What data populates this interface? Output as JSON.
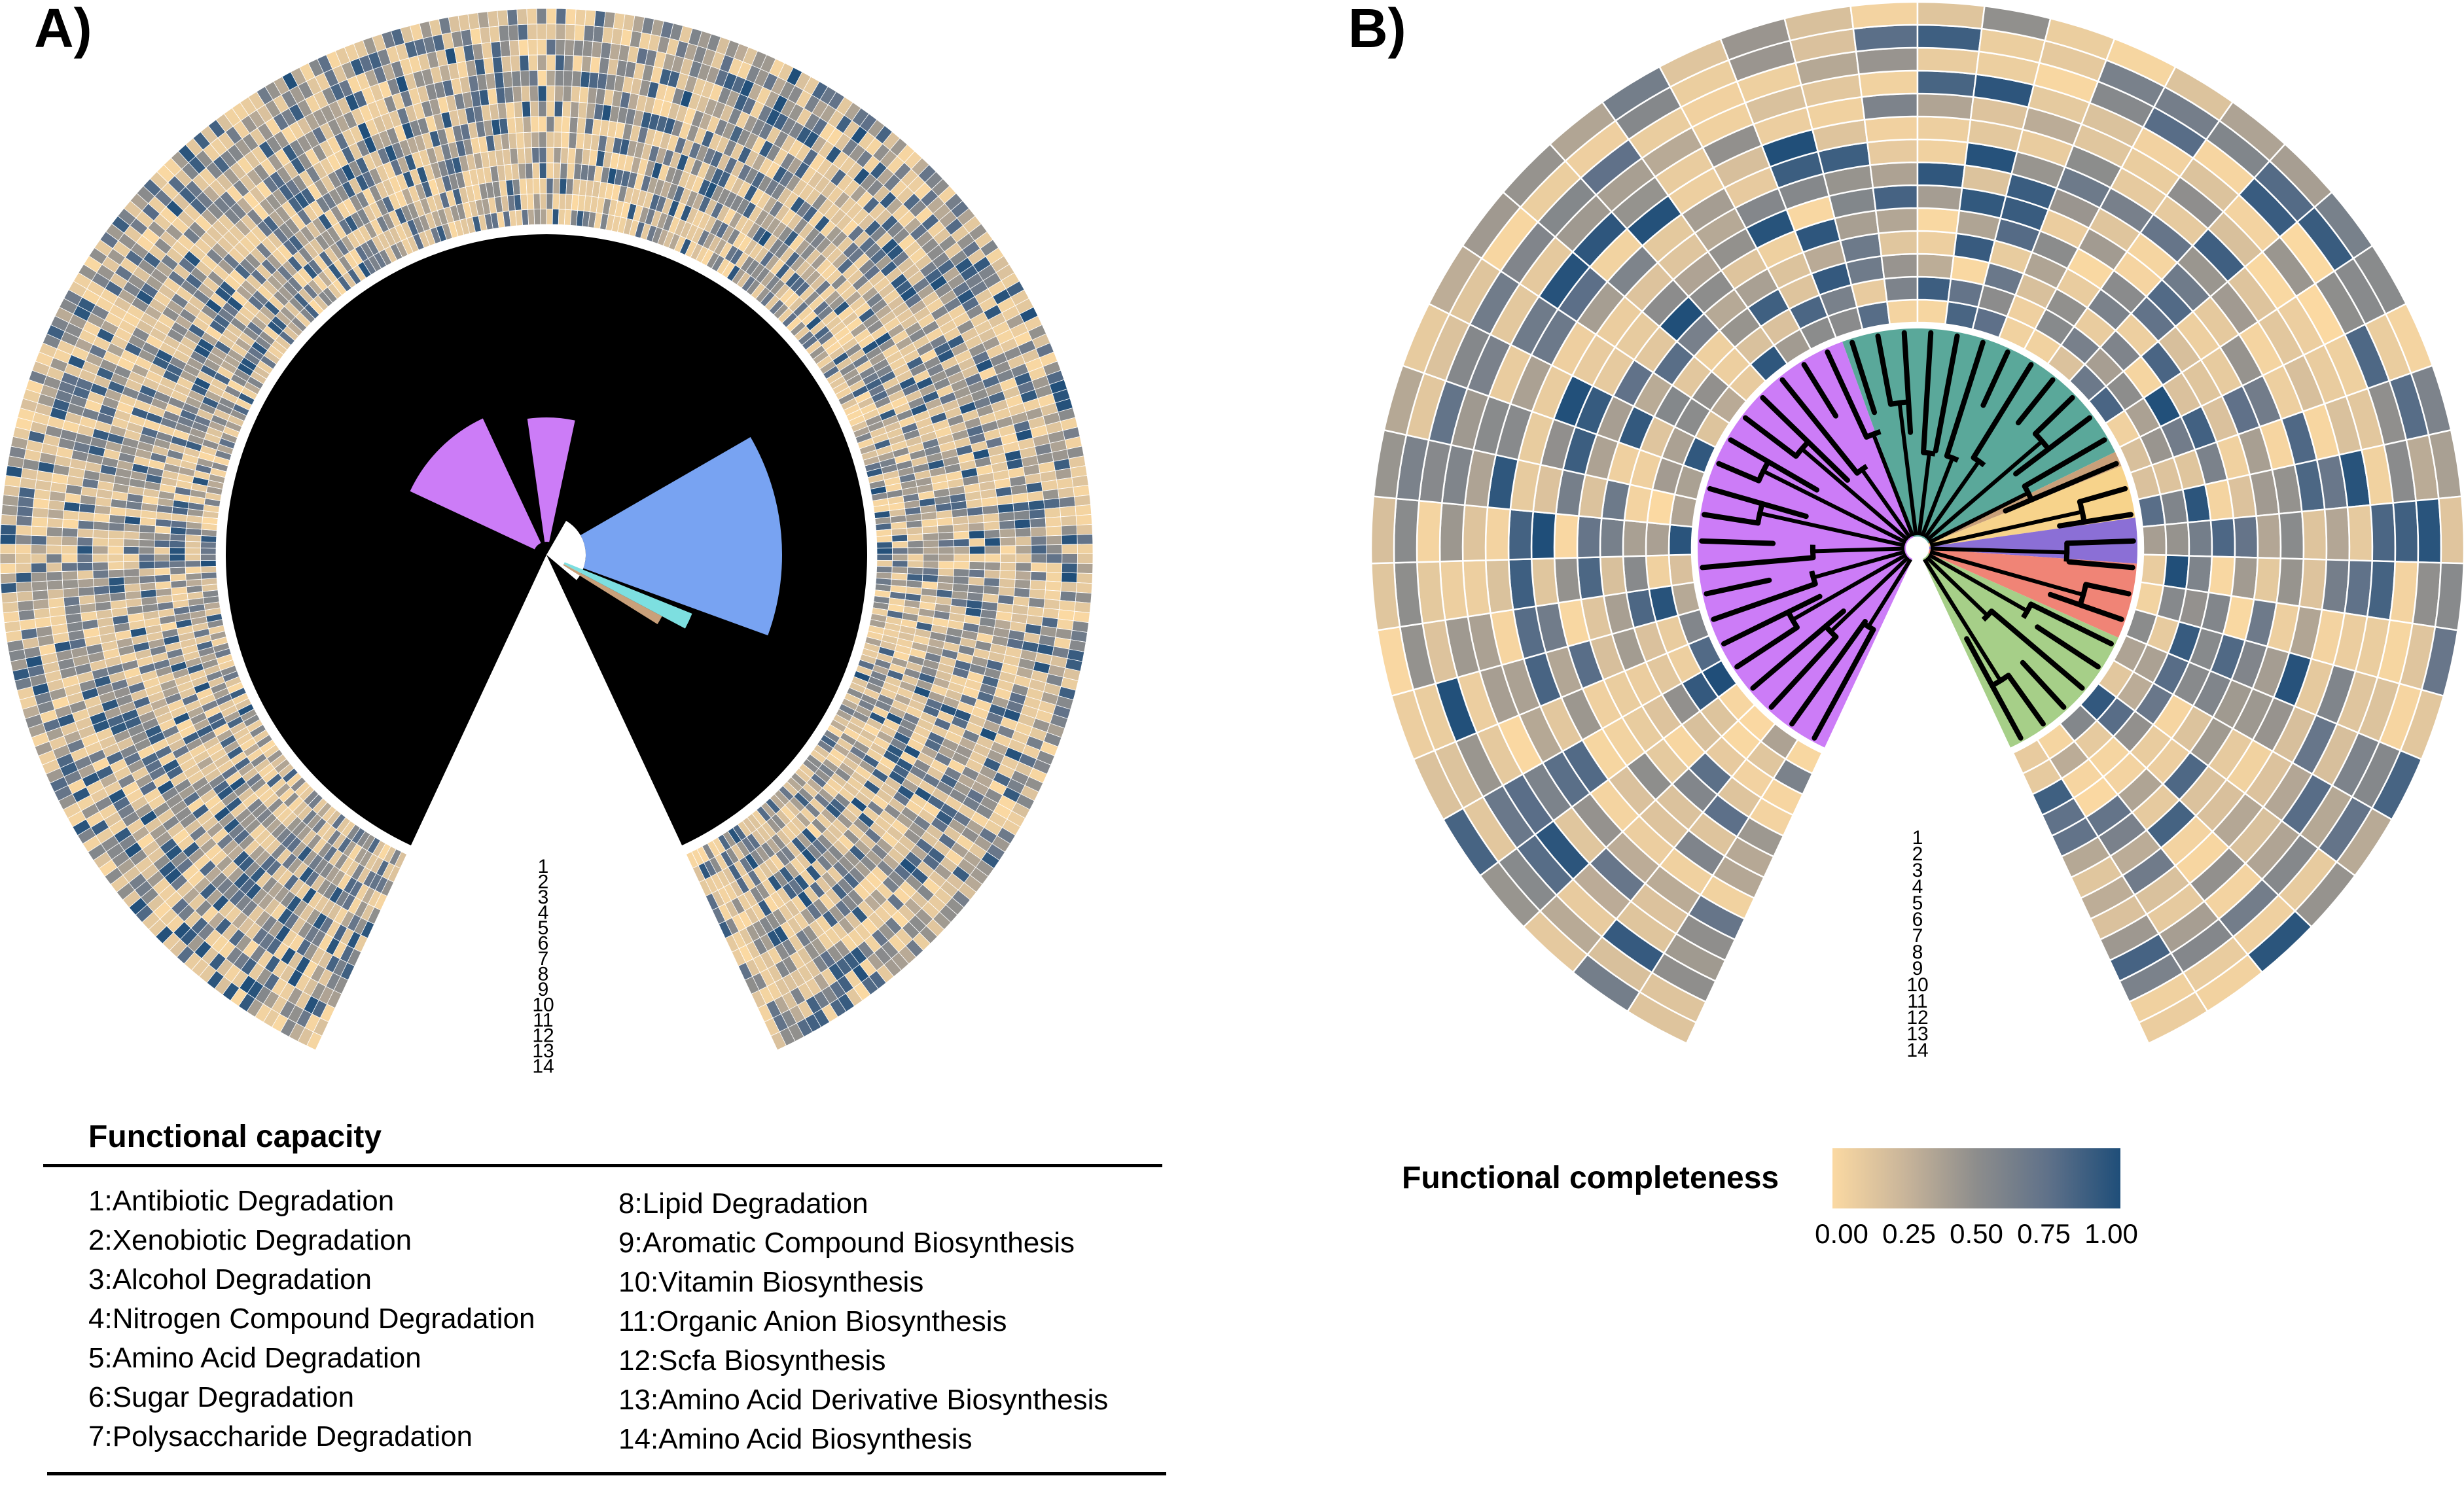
{
  "panel_a": {
    "label": "A)",
    "ring_numbers": [
      "1",
      "2",
      "3",
      "4",
      "5",
      "6",
      "7",
      "8",
      "9",
      "10",
      "11",
      "12",
      "13",
      "14"
    ]
  },
  "panel_b": {
    "label": "B)",
    "ring_numbers": [
      "1",
      "2",
      "3",
      "4",
      "5",
      "6",
      "7",
      "8",
      "9",
      "10",
      "11",
      "12",
      "13",
      "14"
    ]
  },
  "legend": {
    "title": "Functional capacity",
    "left_column": [
      "1:Antibiotic Degradation",
      "2:Xenobiotic Degradation",
      "3:Alcohol Degradation",
      "4:Nitrogen Compound Degradation",
      "5:Amino Acid Degradation",
      "6:Sugar Degradation",
      "7:Polysaccharide Degradation"
    ],
    "right_column": [
      "8:Lipid Degradation",
      "9:Aromatic Compound Biosynthesis",
      "10:Vitamin Biosynthesis",
      "11:Organic Anion Biosynthesis",
      "12:Scfa Biosynthesis",
      "13:Amino Acid Derivative Biosynthesis",
      "14:Amino Acid Biosynthesis"
    ]
  },
  "colorbar": {
    "title": "Functional completeness",
    "ticks": [
      "0.00",
      "0.25",
      "0.50",
      "0.75",
      "1.00"
    ],
    "colors": [
      "#fbd9a2",
      "#c9b59a",
      "#8d8d8c",
      "#5f7189",
      "#1f4e79"
    ]
  },
  "clade_colors": {
    "purple": "#cc7cf7",
    "blue": "#78a3f2",
    "teal": "#5aa89a",
    "cyan": "#7ddfe0",
    "tan": "#c9a07a",
    "yellow": "#f7d38b",
    "indigo": "#8b6fd6",
    "salmon": "#f08476",
    "green": "#a6cf88"
  }
}
